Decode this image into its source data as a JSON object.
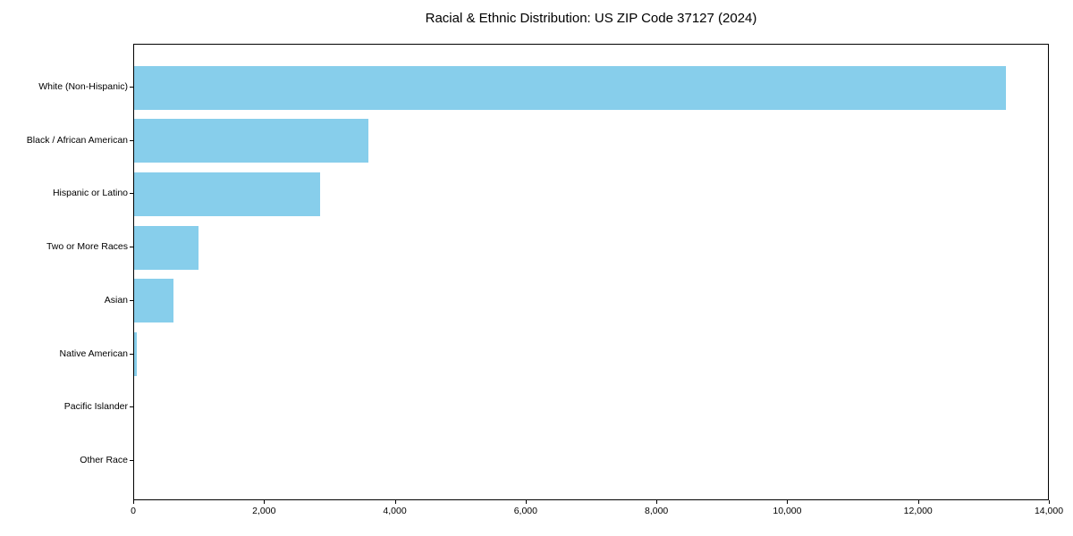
{
  "title": "Racial & Ethnic Distribution: US ZIP Code 37127 (2024)",
  "chart_data": {
    "type": "bar",
    "orientation": "horizontal",
    "title": "Racial & Ethnic Distribution: US ZIP Code 37127 (2024)",
    "categories": [
      "White (Non-Hispanic)",
      "Black / African American",
      "Hispanic or Latino",
      "Two or More Races",
      "Asian",
      "Native American",
      "Pacific Islander",
      "Other Race"
    ],
    "values": [
      13330,
      3580,
      2840,
      980,
      600,
      45,
      0,
      0
    ],
    "xlabel": "",
    "ylabel": "",
    "xlim": [
      0,
      14000
    ],
    "xticks": [
      0,
      2000,
      4000,
      6000,
      8000,
      10000,
      12000,
      14000
    ],
    "xtick_labels": [
      "0",
      "2,000",
      "4,000",
      "6,000",
      "8,000",
      "10,000",
      "12,000",
      "14,000"
    ],
    "bar_color": "#87CEEB",
    "spine_color": "#000000",
    "text_color": "#000000",
    "background_color": "#FFFFFF",
    "grid": false,
    "legend_position": "none"
  }
}
